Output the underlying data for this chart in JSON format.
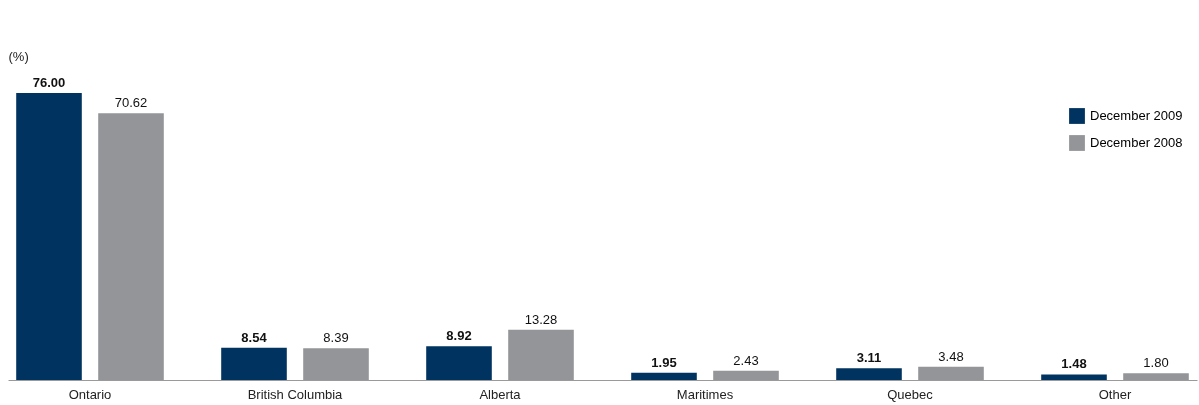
{
  "chart_data": {
    "type": "bar",
    "ylabel": "(%)",
    "categories": [
      "Ontario",
      "British Columbia",
      "Alberta",
      "Maritimes",
      "Quebec",
      "Other"
    ],
    "series": [
      {
        "name": "December 2009",
        "color": "#00335f",
        "values": [
          76.0,
          8.54,
          8.92,
          1.95,
          3.11,
          1.48
        ],
        "value_labels": [
          "76.00",
          "8.54",
          "8.92",
          "1.95",
          "3.11",
          "1.48"
        ]
      },
      {
        "name": "December 2008",
        "color": "#939598",
        "values": [
          70.62,
          8.39,
          13.28,
          2.43,
          3.48,
          1.8
        ],
        "value_labels": [
          "70.62",
          "8.39",
          "13.28",
          "2.43",
          "3.48",
          "1.80"
        ]
      }
    ],
    "legend": "top right"
  }
}
